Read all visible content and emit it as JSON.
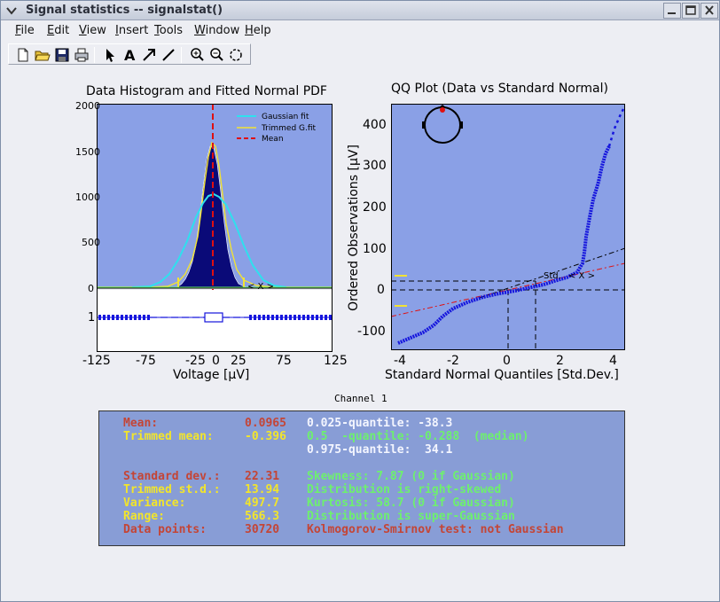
{
  "window": {
    "title": "Signal statistics -- signalstat()"
  },
  "menu": [
    {
      "label": "File",
      "key": "F",
      "rest": "ile"
    },
    {
      "label": "Edit",
      "key": "E",
      "rest": "dit"
    },
    {
      "label": "View",
      "key": "V",
      "rest": "iew"
    },
    {
      "label": "Insert",
      "key": "I",
      "rest": "nsert"
    },
    {
      "label": "Tools",
      "key": "T",
      "rest": "ools"
    },
    {
      "label": "Window",
      "key": "W",
      "rest": "indow"
    },
    {
      "label": "Help",
      "key": "H",
      "rest": "elp"
    }
  ],
  "toolbar_icons": [
    "new-file-icon",
    "open-folder-icon",
    "save-icon",
    "print-icon",
    "select-arrow-icon",
    "text-tool-icon",
    "arrow-tool-icon",
    "line-tool-icon",
    "zoom-in-icon",
    "zoom-out-icon",
    "rotate-icon"
  ],
  "histogram": {
    "title": "Data Histogram and Fitted Normal PDF",
    "xlabel": "Voltage [µV]",
    "xticks": [
      "-125",
      "-75",
      "-25",
      "0",
      "25",
      "75",
      "125"
    ],
    "yticks": [
      "2000",
      "1500",
      "1000",
      "500",
      "0"
    ],
    "box_label": "1",
    "legend": [
      "Gaussian fit",
      "Trimmed G.fit",
      "Mean"
    ],
    "annot": "< X >"
  },
  "qq": {
    "title": "QQ Plot (Data vs Standard Normal)",
    "xlabel": "Standard Normal Quantiles [Std.Dev.]",
    "ylabel": "Ordered Observations [µV]",
    "xticks": [
      "-4",
      "-2",
      "0",
      "2",
      "4"
    ],
    "yticks": [
      "400",
      "300",
      "200",
      "100",
      "0",
      "-100"
    ],
    "annot_std": "Std.",
    "annot_x": "< X >"
  },
  "channel_label": "Channel 1",
  "stats": {
    "mean_label": "Mean:",
    "mean_value": "0.0965",
    "q025": "0.025-quantile: -38.3",
    "tmean_label": "Trimmed mean:",
    "tmean_value": "-0.396",
    "q05": "0.5  -quantile: -0.288  (median)",
    "q975": "0.975-quantile:  34.1",
    "std_label": "Standard dev.:",
    "std_value": "22.31",
    "skew": "Skewness: 7.87 (0 if Gaussian)",
    "tstd_label": "Trimmed st.d.:",
    "tstd_value": "13.94",
    "skew_desc": "Distribution is right-skewed",
    "var_label": "Variance:",
    "var_value": "497.7",
    "kurt": "Kurtosis: 58.7 (0 if Gaussian)",
    "range_label": "Range:",
    "range_value": "566.3",
    "kurt_desc": "Distribution is super-Gaussian",
    "dp_label": "Data points:",
    "dp_value": "30720",
    "ks": "Kolmogorov-Smirnov test: not Gaussian"
  },
  "colors": {
    "axes_bg": "#8aa0e6",
    "hist_fill": "#0a0a78",
    "gauss": "#2ee0ee",
    "trimmed": "#f2e233",
    "mean": "#e01010",
    "qq_points": "#1515dd",
    "stats_bg": "#889dd6"
  }
}
